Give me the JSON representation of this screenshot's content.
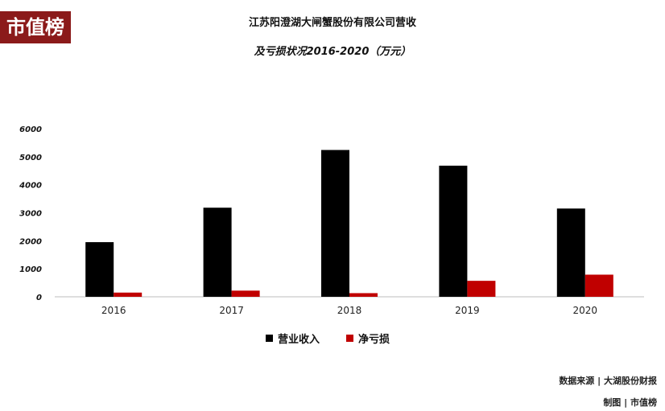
{
  "logo": {
    "text": "市值榜"
  },
  "title": {
    "line1": "江苏阳澄湖大闸蟹股份有限公司营收",
    "line2": "及亏损状况2016-2020（万元）"
  },
  "legend": {
    "revenue_label": "营业收入",
    "loss_label": "净亏损"
  },
  "footer": {
    "source": "数据来源 | 大湖股份财报",
    "made_by": "制图 | 市值榜"
  },
  "colors": {
    "revenue": "#000000",
    "loss": "#c00000",
    "logo_bg": "#8b1a1a"
  },
  "chart_data": {
    "type": "bar",
    "categories": [
      "2016",
      "2017",
      "2018",
      "2019",
      "2020"
    ],
    "series": [
      {
        "name": "营业收入",
        "values": [
          1950,
          3180,
          5240,
          4680,
          3150
        ]
      },
      {
        "name": "净亏损",
        "values": [
          150,
          220,
          130,
          570,
          790
        ]
      }
    ],
    "y_ticks": [
      "0",
      "1000",
      "2000",
      "3000",
      "4000",
      "5000",
      "6000"
    ],
    "ylim": [
      0,
      6000
    ],
    "grid": false
  }
}
